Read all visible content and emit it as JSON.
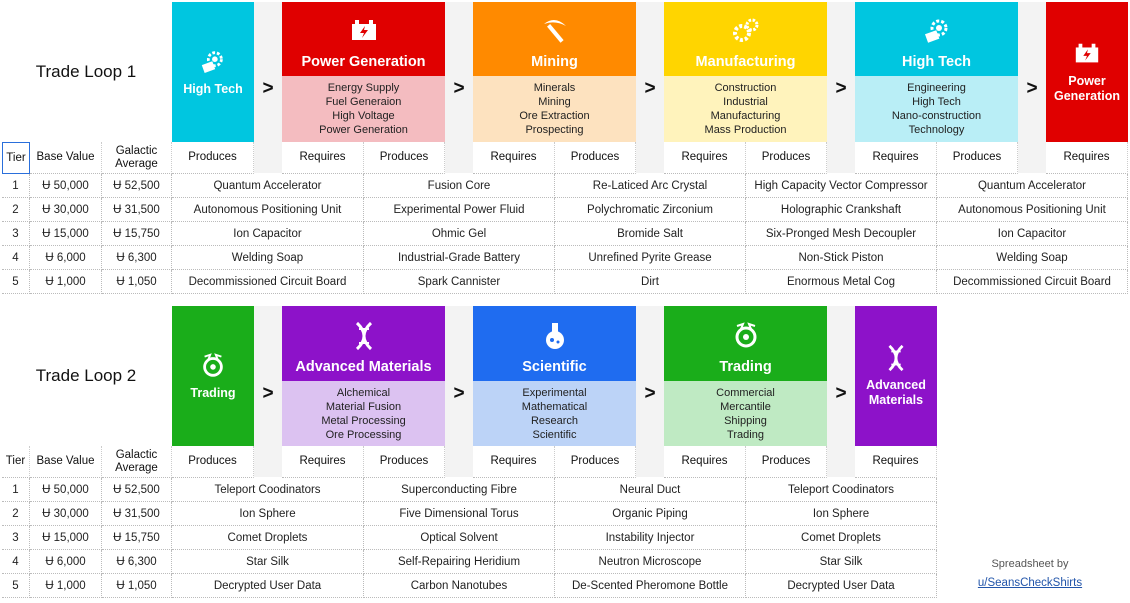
{
  "colors": {
    "high_tech": "#00c6e0",
    "high_tech_light": "#b9eef6",
    "power": "#e00000",
    "power_light": "#f4bcc0",
    "mining": "#ff8a00",
    "mining_light": "#fde2bf",
    "manufacturing": "#ffd500",
    "manufacturing_light": "#fff3bc",
    "trading": "#1aad1a",
    "trading_light": "#bfeac3",
    "advanced": "#8d12c9",
    "advanced_light": "#dcc2f1",
    "scientific": "#1f6cf0",
    "scientific_light": "#bcd3f7"
  },
  "loop1": {
    "title": "Trade Loop 1",
    "start": {
      "name": "High Tech",
      "icon": "chip-gear-icon"
    },
    "sectors": [
      {
        "name": "Power Generation",
        "icon": "power-generator-icon",
        "subs": [
          "Energy Supply",
          "Fuel Generaion",
          "High Voltage",
          "Power Generation"
        ]
      },
      {
        "name": "Mining",
        "icon": "pickaxe-icon",
        "subs": [
          "Minerals",
          "Mining",
          "Ore Extraction",
          "Prospecting"
        ]
      },
      {
        "name": "Manufacturing",
        "icon": "gears-icon",
        "subs": [
          "Construction",
          "Industrial",
          "Manufacturing",
          "Mass Production"
        ]
      },
      {
        "name": "High Tech",
        "icon": "chip-gear-icon",
        "subs": [
          "Engineering",
          "High Tech",
          "Nano-construction",
          "Technology"
        ]
      }
    ],
    "end": {
      "name": "Power Generation",
      "icon": "power-generator-icon"
    },
    "arrow": ">",
    "headers": {
      "tier": "Tier",
      "base": "Base Value",
      "avg": "Galactic Average",
      "produces": "Produces",
      "requires": "Requires"
    },
    "rows": [
      {
        "tier": "1",
        "base": "Ʉ 50,000",
        "avg": "Ʉ 52,500",
        "items": [
          "Quantum Accelerator",
          "Fusion Core",
          "Re-Laticed Arc Crystal",
          "High Capacity Vector Compressor",
          "Quantum Accelerator"
        ]
      },
      {
        "tier": "2",
        "base": "Ʉ 30,000",
        "avg": "Ʉ 31,500",
        "items": [
          "Autonomous Positioning Unit",
          "Experimental Power Fluid",
          "Polychromatic Zirconium",
          "Holographic Crankshaft",
          "Autonomous Positioning Unit"
        ]
      },
      {
        "tier": "3",
        "base": "Ʉ 15,000",
        "avg": "Ʉ 15,750",
        "items": [
          "Ion Capacitor",
          "Ohmic Gel",
          "Bromide Salt",
          "Six-Pronged Mesh Decoupler",
          "Ion Capacitor"
        ]
      },
      {
        "tier": "4",
        "base": "Ʉ 6,000",
        "avg": "Ʉ 6,300",
        "items": [
          "Welding Soap",
          "Industrial-Grade Battery",
          "Unrefined Pyrite Grease",
          "Non-Stick Piston",
          "Welding Soap"
        ]
      },
      {
        "tier": "5",
        "base": "Ʉ 1,000",
        "avg": "Ʉ 1,050",
        "items": [
          "Decommissioned Circuit Board",
          "Spark Cannister",
          "Dirt",
          "Enormous Metal Cog",
          "Decommissioned Circuit Board"
        ]
      }
    ]
  },
  "loop2": {
    "title": "Trade Loop 2",
    "start": {
      "name": "Trading",
      "icon": "coin-exchange-icon"
    },
    "sectors": [
      {
        "name": "Advanced Materials",
        "icon": "dna-icon",
        "subs": [
          "Alchemical",
          "Material Fusion",
          "Metal Processing",
          "Ore Processing"
        ]
      },
      {
        "name": "Scientific",
        "icon": "flask-icon",
        "subs": [
          "Experimental",
          "Mathematical",
          "Research",
          "Scientific"
        ]
      },
      {
        "name": "Trading",
        "icon": "coin-exchange-icon",
        "subs": [
          "Commercial",
          "Mercantile",
          "Shipping",
          "Trading"
        ]
      }
    ],
    "end": {
      "name": "Advanced Materials",
      "icon": "dna-icon"
    },
    "arrow": ">",
    "headers": {
      "tier": "Tier",
      "base": "Base Value",
      "avg": "Galactic Average",
      "produces": "Produces",
      "requires": "Requires"
    },
    "rows": [
      {
        "tier": "1",
        "base": "Ʉ 50,000",
        "avg": "Ʉ 52,500",
        "items": [
          "Teleport Coodinators",
          "Superconducting Fibre",
          "Neural Duct",
          "Teleport Coodinators"
        ]
      },
      {
        "tier": "2",
        "base": "Ʉ 30,000",
        "avg": "Ʉ 31,500",
        "items": [
          "Ion Sphere",
          "Five Dimensional Torus",
          "Organic Piping",
          "Ion Sphere"
        ]
      },
      {
        "tier": "3",
        "base": "Ʉ 15,000",
        "avg": "Ʉ 15,750",
        "items": [
          "Comet Droplets",
          "Optical Solvent",
          "Instability Injector",
          "Comet Droplets"
        ]
      },
      {
        "tier": "4",
        "base": "Ʉ 6,000",
        "avg": "Ʉ 6,300",
        "items": [
          "Star Silk",
          "Self-Repairing Heridium",
          "Neutron Microscope",
          "Star Silk"
        ]
      },
      {
        "tier": "5",
        "base": "Ʉ 1,000",
        "avg": "Ʉ 1,050",
        "items": [
          "Decrypted User Data",
          "Carbon Nanotubes",
          "De-Scented Pheromone Bottle",
          "Decrypted User Data"
        ]
      }
    ]
  },
  "credit": {
    "line1": "Spreadsheet by",
    "line2": "u/SeansCheckShirts"
  }
}
